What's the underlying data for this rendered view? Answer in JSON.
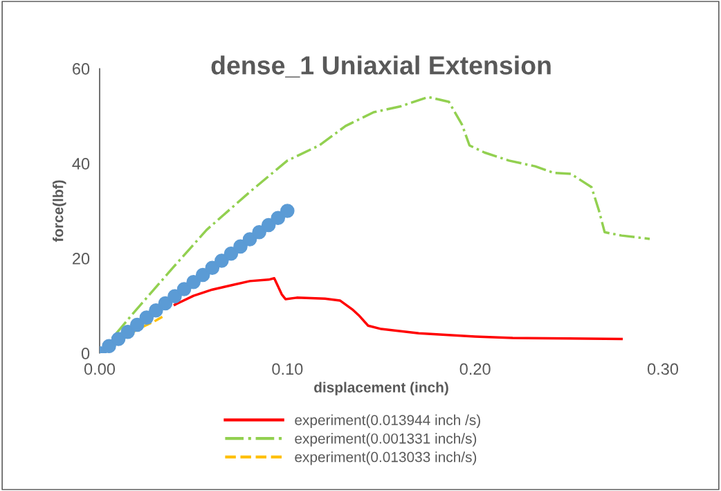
{
  "chart_data": {
    "type": "line",
    "title": "dense_1 Uniaxial Extension",
    "xlabel": "displacement (inch)",
    "ylabel": "force(lbf)",
    "xlim": [
      0,
      0.3
    ],
    "ylim": [
      0,
      60
    ],
    "xticks": [
      {
        "value": 0,
        "label": "0.00"
      },
      {
        "value": 0.1,
        "label": "0.10"
      },
      {
        "value": 0.2,
        "label": "0.20"
      },
      {
        "value": 0.3,
        "label": "0.30"
      }
    ],
    "yticks": [
      0,
      20,
      40,
      60
    ],
    "grid": false,
    "legend": "bottom",
    "series": [
      {
        "name": "experiment(0.013944 inch /s)",
        "color": "#ff0000",
        "line_style": "solid",
        "marker": "none",
        "x": [
          0.04,
          0.05,
          0.06,
          0.07,
          0.08,
          0.09,
          0.093,
          0.097,
          0.099,
          0.105,
          0.12,
          0.128,
          0.135,
          0.138,
          0.143,
          0.15,
          0.17,
          0.2,
          0.22,
          0.25,
          0.278
        ],
        "values": [
          10.2,
          12.1,
          13.4,
          14.3,
          15.2,
          15.5,
          15.8,
          12.4,
          11.4,
          11.7,
          11.5,
          11.1,
          9.1,
          8,
          5.8,
          5.1,
          4.2,
          3.5,
          3.2,
          3.1,
          3.0
        ]
      },
      {
        "name": "experiment(0.001331 inch/s)",
        "color": "#92d050",
        "line_style": "dashdot",
        "marker": "none",
        "x": [
          0,
          0.017,
          0.039,
          0.057,
          0.08,
          0.1,
          0.117,
          0.131,
          0.146,
          0.16,
          0.175,
          0.186,
          0.193,
          0.197,
          0.205,
          0.218,
          0.232,
          0.242,
          0.251,
          0.262,
          0.266,
          0.269,
          0.278,
          0.293
        ],
        "values": [
          0,
          8,
          18,
          26,
          34,
          40.6,
          43.8,
          47.9,
          50.8,
          52,
          54,
          53,
          48.2,
          43.8,
          42.3,
          40.6,
          39.4,
          38,
          37.8,
          35,
          30,
          25.5,
          24.8,
          24.1
        ]
      },
      {
        "name": "experiment(0.013033 inch/s)",
        "color": "#ffc000",
        "line_style": "dashed",
        "marker": "none",
        "x": [
          0,
          0.02,
          0.03,
          0.035
        ],
        "values": [
          0,
          5,
          6.9,
          8
        ]
      },
      {
        "color": "#5b9bd5",
        "type": "scatter",
        "marker": "circle",
        "x": [
          0,
          0.005,
          0.01,
          0.015,
          0.02,
          0.025,
          0.03,
          0.035,
          0.04,
          0.045,
          0.05,
          0.055,
          0.06,
          0.065,
          0.07,
          0.075,
          0.08,
          0.085,
          0.09,
          0.095,
          0.1
        ],
        "values": [
          0,
          1.5,
          3,
          4.5,
          6,
          7.5,
          9,
          10.5,
          12,
          13.5,
          15,
          16.5,
          18,
          19.5,
          21,
          22.5,
          24,
          25.5,
          27,
          28.5,
          30
        ]
      }
    ]
  }
}
